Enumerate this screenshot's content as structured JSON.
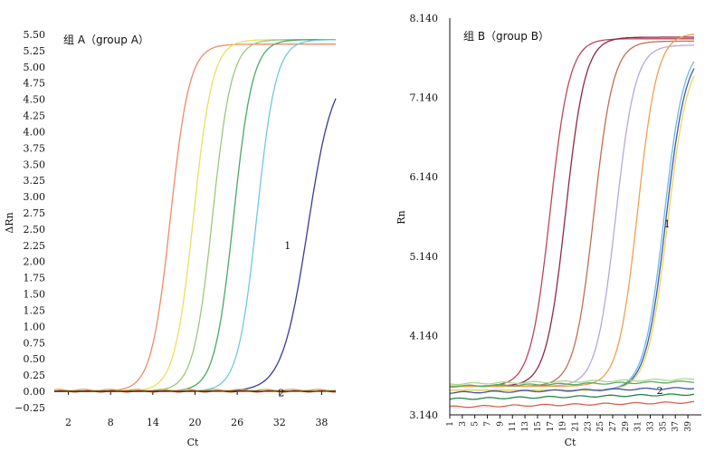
{
  "chart_data": [
    {
      "panel": "A",
      "type": "line",
      "title": "组 A（group A）",
      "xlabel": "Ct",
      "ylabel": "ΔRn",
      "xlim": [
        0,
        40
      ],
      "ylim": [
        -0.25,
        5.6
      ],
      "xticks": [
        2,
        8,
        14,
        20,
        26,
        32,
        38
      ],
      "yticks": [
        "5.50",
        "5.25",
        "5.00",
        "4.75",
        "4.50",
        "4.25",
        "4.00",
        "3.75",
        "3.50",
        "3.25",
        "3.00",
        "2.75",
        "2.50",
        "2.25",
        "2.00",
        "1.75",
        "1.50",
        "1.25",
        "1.00",
        "0.75",
        "0.50",
        "0.25",
        "0.00",
        "−0.25"
      ],
      "annotations": [
        {
          "text": "1",
          "x": 32.7,
          "y": 2.25
        },
        {
          "text": "2",
          "x": 31.8,
          "y": -0.02
        }
      ],
      "series": [
        {
          "color": "#f08a6a",
          "plateau": 5.35,
          "midpoint": 16.5,
          "slope": 1.35
        },
        {
          "color": "#e8e060",
          "plateau": 5.42,
          "midpoint": 19.8,
          "slope": 1.35
        },
        {
          "color": "#9cc87a",
          "plateau": 5.42,
          "midpoint": 22.5,
          "slope": 1.35
        },
        {
          "color": "#4aa86a",
          "plateau": 5.42,
          "midpoint": 25.5,
          "slope": 1.35
        },
        {
          "color": "#70c8e0",
          "plateau": 5.42,
          "midpoint": 28.8,
          "slope": 1.35
        },
        {
          "color": "#3a3a98",
          "plateau": 5.0,
          "midpoint": 36.0,
          "slope": 1.8
        },
        {
          "color": "#c84030",
          "flat": 0.0
        },
        {
          "color": "#e0a030",
          "flat": 0.02
        }
      ]
    },
    {
      "panel": "B",
      "type": "line",
      "title": "组 B（group B）",
      "xlabel": "Ct",
      "ylabel": "Rn",
      "xlim": [
        1,
        40
      ],
      "ylim": [
        3.14,
        8.14
      ],
      "xticks": [
        1,
        3,
        5,
        7,
        9,
        11,
        13,
        15,
        17,
        19,
        21,
        23,
        25,
        27,
        29,
        31,
        33,
        35,
        37,
        39
      ],
      "yticks": [
        "8.140",
        "7.140",
        "6.140",
        "5.140",
        "4.140",
        "3.140"
      ],
      "annotations": [
        {
          "text": "1",
          "x": 35.2,
          "y": 5.55
        },
        {
          "text": "2",
          "x": 34.0,
          "y": 3.45
        }
      ],
      "series": [
        {
          "color": "#b84858",
          "base": 3.5,
          "plateau": 7.88,
          "midpoint": 17.0,
          "slope": 1.55
        },
        {
          "color": "#8a2a4a",
          "base": 3.5,
          "plateau": 7.9,
          "midpoint": 19.5,
          "slope": 1.55
        },
        {
          "color": "#c07050",
          "base": 3.5,
          "plateau": 7.85,
          "midpoint": 24.0,
          "slope": 1.55
        },
        {
          "color": "#b8a8d8",
          "base": 3.5,
          "plateau": 7.8,
          "midpoint": 27.5,
          "slope": 1.55
        },
        {
          "color": "#f0a050",
          "base": 3.5,
          "plateau": 7.95,
          "midpoint": 31.0,
          "slope": 1.55
        },
        {
          "color": "#3a58b8",
          "base": 3.45,
          "plateau": 7.75,
          "midpoint": 35.5,
          "slope": 1.6
        },
        {
          "color": "#70b8e0",
          "base": 3.45,
          "plateau": 7.8,
          "midpoint": 35.2,
          "slope": 1.6
        },
        {
          "color": "#e8d850",
          "base": 3.45,
          "plateau": 7.7,
          "midpoint": 35.8,
          "slope": 1.6
        },
        {
          "color": "#a8d890",
          "flat": 3.53
        },
        {
          "color": "#60a860",
          "flat": 3.5
        },
        {
          "color": "#4050a8",
          "flat": 3.42
        },
        {
          "color": "#208848",
          "flat": 3.34
        },
        {
          "color": "#d86050",
          "flat": 3.24
        }
      ]
    }
  ]
}
